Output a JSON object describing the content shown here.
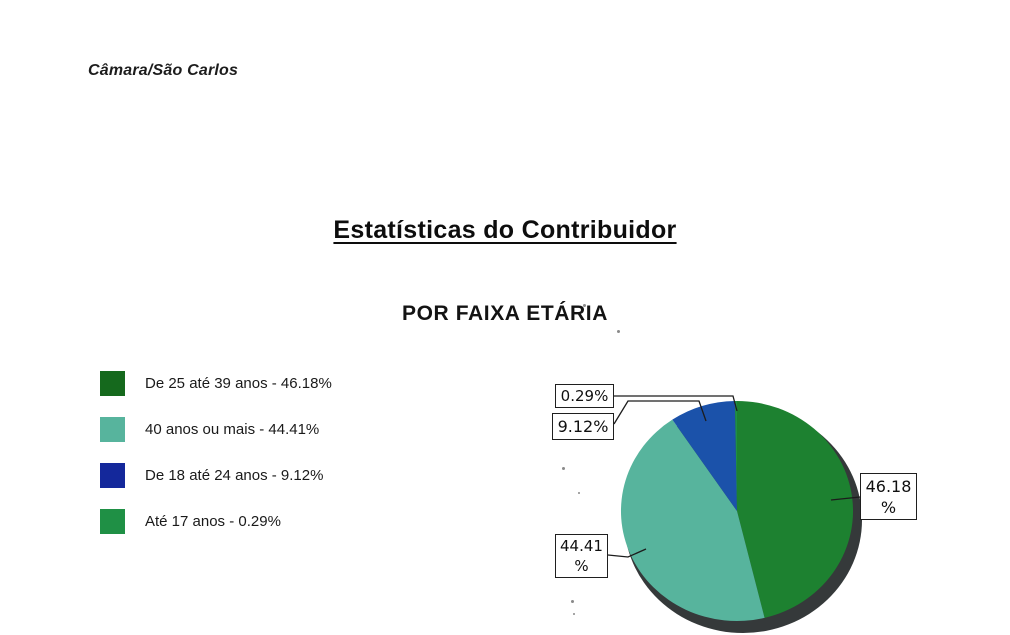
{
  "page": {
    "org_label": "Câmara/São Carlos",
    "title": "Estatísticas do Contribuidor",
    "subtitle": "POR FAIXA ETÁRIA"
  },
  "chart_data": {
    "type": "pie",
    "title": "Estatísticas do Contribuidor",
    "subtitle": "POR FAIXA ETÁRIA",
    "unit": "%",
    "start_angle_deg": 0,
    "direction": "clockwise",
    "legend_position": "left",
    "shadow_color": "#35393a",
    "slices": [
      {
        "label": "De 25 até 39 anos",
        "value": 46.18,
        "color": "#1d8130",
        "legend_color": "#15691d",
        "legend_text": "De 25 até 39 anos - 46.18%"
      },
      {
        "label": "40 anos ou mais",
        "value": 44.41,
        "color": "#57b49d",
        "legend_color": "#57b49d",
        "legend_text": "40 anos ou mais - 44.41%"
      },
      {
        "label": "De 18 até 24 anos",
        "value": 9.12,
        "color": "#1b52aa",
        "legend_color": "#14289b",
        "legend_text": "De 18 até 24 anos - 9.12%"
      },
      {
        "label": "Até 17 anos",
        "value": 0.29,
        "color": "#1f9045",
        "legend_color": "#1f9045",
        "legend_text": "Até 17 anos - 0.29%"
      }
    ]
  },
  "callouts": {
    "tiny": {
      "text": "0.29%"
    },
    "young": {
      "text": "9.12%"
    },
    "adult": {
      "line1": "46.18",
      "line2": "%"
    },
    "older": {
      "line1": "44.41",
      "line2": "%"
    }
  }
}
